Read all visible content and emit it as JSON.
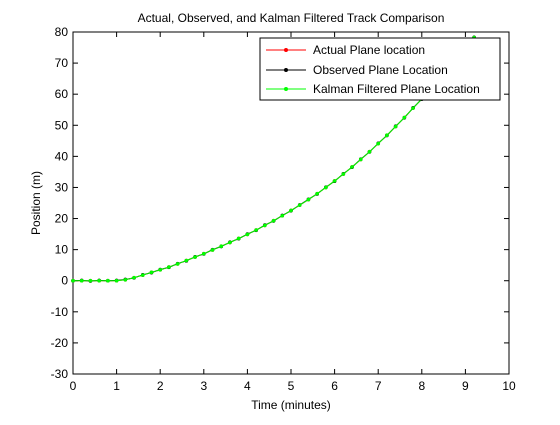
{
  "chart_data": {
    "type": "line",
    "title": "Actual, Observed, and Kalman Filtered Track Comparison",
    "xlabel": "Time (minutes)",
    "ylabel": "Position (m)",
    "xlim": [
      0,
      10
    ],
    "ylim": [
      -30,
      80
    ],
    "xticks": [
      "0",
      "1",
      "2",
      "3",
      "4",
      "5",
      "6",
      "7",
      "8",
      "9",
      "10"
    ],
    "yticks": [
      "-30",
      "-20",
      "-10",
      "0",
      "10",
      "20",
      "30",
      "40",
      "50",
      "60",
      "70",
      "80"
    ],
    "grid": false,
    "legend_position": "top-right",
    "series": [
      {
        "name": "Actual Plane location",
        "color": "#ff0000",
        "marker": "dot",
        "x": [
          0,
          0.2,
          0.4,
          0.6,
          0.8,
          1.0,
          1.2,
          1.4,
          1.6,
          1.8,
          2.0,
          2.2,
          2.4,
          2.6,
          2.8,
          3.0,
          3.2,
          3.4,
          3.6,
          3.8,
          4.0,
          4.2,
          4.4,
          4.6,
          4.8,
          5.0,
          5.2,
          5.4,
          5.6,
          5.8,
          6.0,
          6.2,
          6.4,
          6.6,
          6.8,
          7.0,
          7.2,
          7.4,
          7.6,
          7.8,
          8.0,
          8.2,
          8.4,
          8.6,
          8.8,
          9.0,
          9.2
        ],
        "y": [
          0.0,
          0.0,
          0.0,
          0.0,
          0.0,
          0.0,
          0.3,
          1.0,
          1.8,
          2.7,
          3.5,
          4.4,
          5.4,
          6.5,
          7.6,
          8.7,
          9.9,
          11.1,
          12.3,
          13.6,
          14.9,
          16.3,
          17.8,
          19.3,
          20.9,
          22.6,
          24.3,
          26.1,
          28.0,
          30.0,
          32.1,
          34.3,
          36.6,
          39.0,
          41.5,
          44.1,
          46.8,
          49.6,
          52.5,
          55.5,
          58.5,
          61.6,
          64.7,
          67.9,
          71.1,
          74.5,
          78.2
        ]
      },
      {
        "name": "Observed Plane Location",
        "color": "#000000",
        "marker": "dot",
        "x": [
          0,
          0.2,
          0.4,
          0.6,
          0.8,
          1.0,
          1.2,
          1.4,
          1.6,
          1.8,
          2.0,
          2.2,
          2.4,
          2.6,
          2.8,
          3.0,
          3.2,
          3.4,
          3.6,
          3.8,
          4.0,
          4.2,
          4.4,
          4.6,
          4.8,
          5.0,
          5.2,
          5.4,
          5.6,
          5.8,
          6.0,
          6.2,
          6.4,
          6.6,
          6.8,
          7.0,
          7.2,
          7.4,
          7.6,
          7.8,
          8.0,
          8.2,
          8.4,
          8.6,
          8.8,
          9.0,
          9.2
        ],
        "y": [
          0.0,
          0.1,
          -0.1,
          0.1,
          0.0,
          0.1,
          0.4,
          0.9,
          1.9,
          2.6,
          3.6,
          4.3,
          5.5,
          6.4,
          7.7,
          8.6,
          10.0,
          11.0,
          12.4,
          13.5,
          15.0,
          16.2,
          17.9,
          19.2,
          21.0,
          22.5,
          24.4,
          26.2,
          27.9,
          30.1,
          32.0,
          34.4,
          36.5,
          39.1,
          41.4,
          44.2,
          46.7,
          49.7,
          52.4,
          55.6,
          58.4,
          61.7,
          64.6,
          68.0,
          71.0,
          74.6,
          78.3
        ]
      },
      {
        "name": "Kalman Filtered Plane Location",
        "color": "#00ff00",
        "marker": "dot",
        "x": [
          0,
          0.2,
          0.4,
          0.6,
          0.8,
          1.0,
          1.2,
          1.4,
          1.6,
          1.8,
          2.0,
          2.2,
          2.4,
          2.6,
          2.8,
          3.0,
          3.2,
          3.4,
          3.6,
          3.8,
          4.0,
          4.2,
          4.4,
          4.6,
          4.8,
          5.0,
          5.2,
          5.4,
          5.6,
          5.8,
          6.0,
          6.2,
          6.4,
          6.6,
          6.8,
          7.0,
          7.2,
          7.4,
          7.6,
          7.8,
          8.0,
          8.2,
          8.4,
          8.6,
          8.8,
          9.0,
          9.2
        ],
        "y": [
          0.0,
          0.0,
          0.0,
          0.0,
          0.0,
          0.0,
          0.3,
          1.0,
          1.8,
          2.7,
          3.5,
          4.4,
          5.4,
          6.5,
          7.6,
          8.7,
          9.9,
          11.1,
          12.3,
          13.6,
          14.9,
          16.3,
          17.8,
          19.3,
          20.9,
          22.6,
          24.3,
          26.1,
          28.0,
          30.0,
          32.1,
          34.3,
          36.6,
          39.0,
          41.5,
          44.1,
          46.8,
          49.6,
          52.5,
          55.5,
          58.5,
          61.6,
          64.7,
          67.9,
          71.1,
          74.5,
          78.2
        ]
      }
    ]
  }
}
